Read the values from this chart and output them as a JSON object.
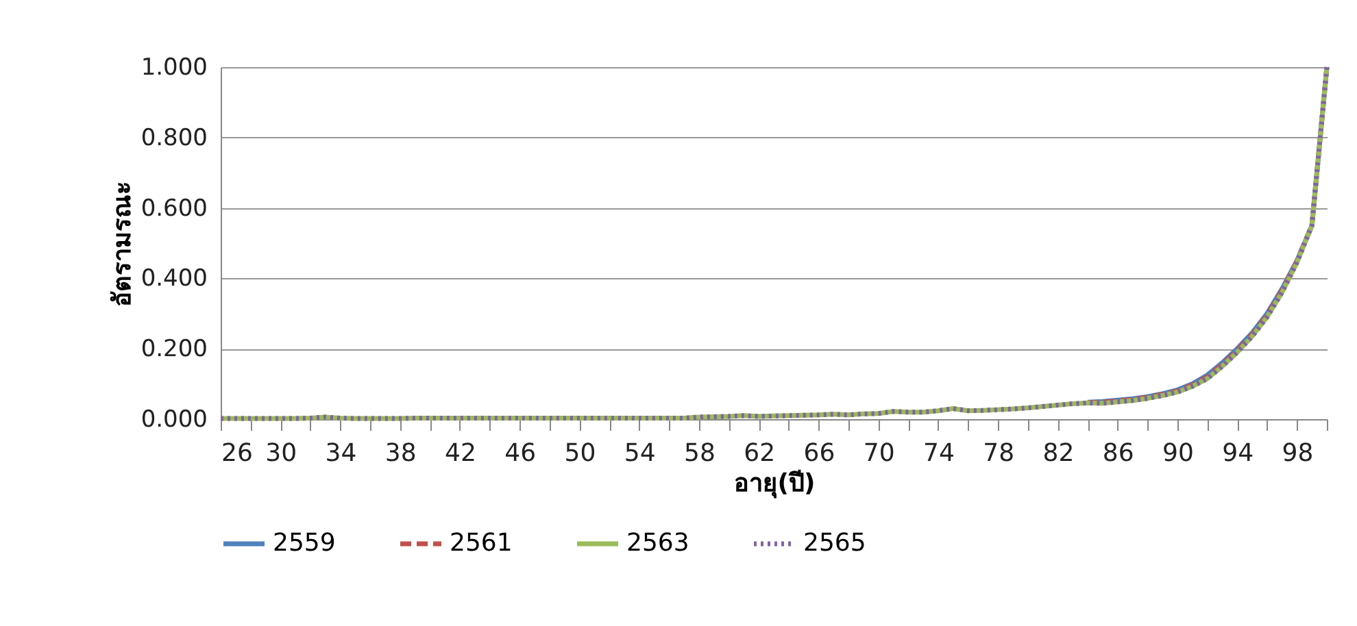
{
  "chart_data": {
    "type": "line",
    "xlabel": "อายุ(ปี)",
    "ylabel": "อัตรามรณะ",
    "x": [
      26,
      27,
      28,
      29,
      30,
      31,
      32,
      33,
      34,
      35,
      36,
      37,
      38,
      39,
      40,
      41,
      42,
      43,
      44,
      45,
      46,
      47,
      48,
      49,
      50,
      51,
      52,
      53,
      54,
      55,
      56,
      57,
      58,
      59,
      60,
      61,
      62,
      63,
      64,
      65,
      66,
      67,
      68,
      69,
      70,
      71,
      72,
      73,
      74,
      75,
      76,
      77,
      78,
      79,
      80,
      81,
      82,
      83,
      84,
      85,
      86,
      87,
      88,
      89,
      90,
      91,
      92,
      93,
      94,
      95,
      96,
      97,
      98,
      99,
      100
    ],
    "series": [
      {
        "name": "2559",
        "color": "#4f81bd",
        "line_style": "solid",
        "values": [
          null,
          null,
          null,
          null,
          null,
          null,
          null,
          null,
          null,
          null,
          null,
          null,
          null,
          null,
          null,
          null,
          null,
          null,
          null,
          null,
          null,
          null,
          null,
          null,
          null,
          null,
          null,
          null,
          null,
          null,
          null,
          null,
          null,
          null,
          null,
          null,
          null,
          null,
          null,
          null,
          null,
          null,
          null,
          null,
          null,
          null,
          null,
          null,
          null,
          null,
          null,
          null,
          null,
          null,
          null,
          null,
          null,
          null,
          0.048,
          0.05,
          0.054,
          0.058,
          0.064,
          0.072,
          0.083,
          0.1,
          0.125,
          0.16,
          0.2,
          0.245,
          0.3,
          0.37,
          0.45,
          0.55,
          1.0
        ]
      },
      {
        "name": "2561",
        "color": "#c0504d",
        "line_style": "dashed",
        "values": [
          null,
          null,
          null,
          null,
          null,
          null,
          null,
          null,
          null,
          null,
          null,
          null,
          null,
          null,
          null,
          null,
          null,
          null,
          null,
          null,
          null,
          null,
          null,
          null,
          null,
          null,
          null,
          null,
          null,
          null,
          null,
          null,
          null,
          null,
          null,
          null,
          null,
          null,
          null,
          null,
          null,
          null,
          null,
          null,
          null,
          null,
          null,
          null,
          null,
          null,
          null,
          null,
          null,
          null,
          null,
          null,
          null,
          null,
          0.047,
          0.048,
          0.052,
          0.056,
          0.062,
          0.07,
          0.08,
          0.097,
          0.12,
          0.155,
          0.195,
          0.24,
          0.295,
          0.365,
          0.45,
          0.55,
          1.0
        ]
      },
      {
        "name": "2563",
        "color": "#9bbb59",
        "line_style": "solid",
        "values": [
          0.002,
          0.002,
          0.002,
          0.002,
          0.002,
          0.002,
          0.003,
          0.006,
          0.003,
          0.002,
          0.002,
          0.002,
          0.002,
          0.003,
          0.003,
          0.003,
          0.003,
          0.003,
          0.003,
          0.003,
          0.003,
          0.003,
          0.003,
          0.003,
          0.003,
          0.003,
          0.003,
          0.003,
          0.003,
          0.003,
          0.003,
          0.003,
          0.006,
          0.007,
          0.008,
          0.01,
          0.008,
          0.009,
          0.01,
          0.011,
          0.012,
          0.014,
          0.012,
          0.015,
          0.016,
          0.022,
          0.02,
          0.02,
          0.024,
          0.03,
          0.024,
          0.025,
          0.027,
          0.029,
          0.032,
          0.036,
          0.04,
          0.044,
          0.046,
          0.045,
          0.049,
          0.053,
          0.059,
          0.067,
          0.077,
          0.093,
          0.115,
          0.15,
          0.19,
          0.235,
          0.29,
          0.36,
          0.445,
          0.55,
          1.0
        ]
      },
      {
        "name": "2565",
        "color": "#8064a2",
        "line_style": "dotted",
        "values": [
          0.002,
          0.002,
          0.002,
          0.002,
          0.002,
          0.002,
          0.003,
          0.006,
          0.003,
          0.002,
          0.002,
          0.002,
          0.002,
          0.003,
          0.003,
          0.003,
          0.003,
          0.003,
          0.003,
          0.003,
          0.003,
          0.003,
          0.003,
          0.003,
          0.003,
          0.003,
          0.003,
          0.003,
          0.003,
          0.003,
          0.003,
          0.003,
          0.006,
          0.007,
          0.008,
          0.01,
          0.008,
          0.009,
          0.01,
          0.011,
          0.012,
          0.014,
          0.012,
          0.015,
          0.016,
          0.022,
          0.02,
          0.02,
          0.024,
          0.03,
          0.024,
          0.025,
          0.027,
          0.029,
          0.032,
          0.036,
          0.04,
          0.044,
          0.046,
          0.045,
          0.049,
          0.053,
          0.059,
          0.067,
          0.077,
          0.093,
          0.115,
          0.15,
          0.19,
          0.235,
          0.29,
          0.36,
          0.445,
          0.55,
          1.0
        ]
      }
    ],
    "xlim": [
      26,
      100
    ],
    "xticks": [
      26,
      {
        "value": 28,
        "label": null
      },
      30,
      {
        "value": 32,
        "label": null
      },
      34,
      {
        "value": 36,
        "label": null
      },
      38,
      {
        "value": 40,
        "label": null
      },
      42,
      {
        "value": 44,
        "label": null
      },
      46,
      {
        "value": 48,
        "label": null
      },
      50,
      {
        "value": 52,
        "label": null
      },
      54,
      {
        "value": 56,
        "label": null
      },
      58,
      {
        "value": 60,
        "label": null
      },
      62,
      {
        "value": 64,
        "label": null
      },
      66,
      {
        "value": 68,
        "label": null
      },
      70,
      {
        "value": 72,
        "label": null
      },
      74,
      {
        "value": 76,
        "label": null
      },
      78,
      {
        "value": 80,
        "label": null
      },
      82,
      {
        "value": 84,
        "label": null
      },
      86,
      {
        "value": 88,
        "label": null
      },
      90,
      {
        "value": 92,
        "label": null
      },
      94,
      {
        "value": 96,
        "label": null
      },
      98,
      {
        "value": 100,
        "label": null
      }
    ],
    "ylim": [
      0,
      1
    ],
    "yticks": [
      {
        "value": 0,
        "label": "0.000"
      },
      {
        "value": 0.2,
        "label": "0.200"
      },
      {
        "value": 0.4,
        "label": "0.400"
      },
      {
        "value": 0.6,
        "label": "0.600"
      },
      {
        "value": 0.8,
        "label": "0.800"
      },
      {
        "value": 1,
        "label": "1.000"
      }
    ],
    "grid": "y",
    "legend": "bottom",
    "marker": "none"
  }
}
